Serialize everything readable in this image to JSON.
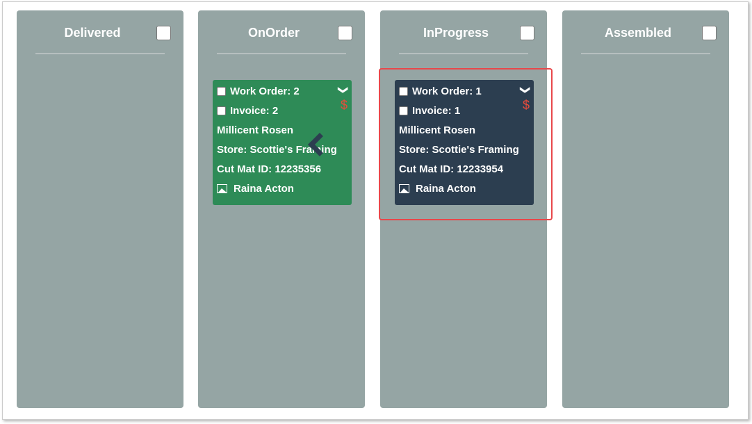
{
  "columns": [
    {
      "title": "Delivered",
      "cards": []
    },
    {
      "title": "OnOrder",
      "cards": [
        {
          "work_order": "Work Order: 2",
          "invoice": "Invoice: 2",
          "customer": "Millicent Rosen",
          "store": "Store: Scottie's Framing",
          "cut_mat": "Cut Mat ID: 12235356",
          "artist": "Raina Acton",
          "color": "#2e8b57"
        }
      ]
    },
    {
      "title": "InProgress",
      "cards": [
        {
          "work_order": "Work Order: 1",
          "invoice": "Invoice: 1",
          "customer": "Millicent Rosen",
          "store": "Store: Scottie's Framing",
          "cut_mat": "Cut Mat ID: 12233954",
          "artist": "Raina Acton",
          "color": "#2c3e50"
        }
      ]
    },
    {
      "title": "Assembled",
      "cards": []
    }
  ],
  "icons": {
    "expand": "chevron-down-icon",
    "payment": "dollar-icon",
    "image": "image-icon"
  },
  "symbols": {
    "chevron": "❯",
    "dollar": "$"
  }
}
